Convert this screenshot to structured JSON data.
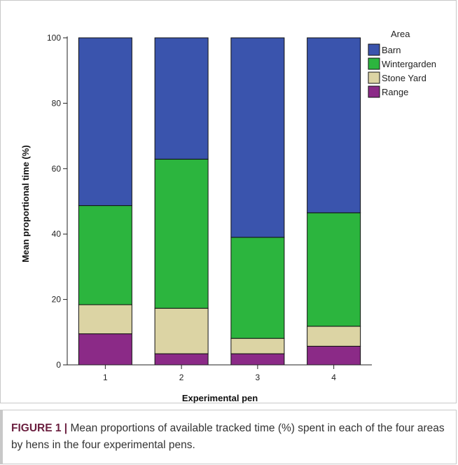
{
  "chart_data": {
    "type": "bar",
    "stacked": true,
    "categories": [
      "1",
      "2",
      "3",
      "4"
    ],
    "series": [
      {
        "name": "Range",
        "color": "#8b2a87",
        "values": [
          9.5,
          3.4,
          3.4,
          5.7
        ]
      },
      {
        "name": "Stone Yard",
        "color": "#dcd4a4",
        "values": [
          8.9,
          13.9,
          4.7,
          6.1
        ]
      },
      {
        "name": "Wintergarden",
        "color": "#2cb53e",
        "values": [
          30.3,
          45.6,
          30.9,
          34.7
        ]
      },
      {
        "name": "Barn",
        "color": "#3a54ad",
        "values": [
          51.3,
          37.1,
          61.0,
          53.5
        ]
      }
    ],
    "xlabel": "Experimental pen",
    "ylabel": "Mean proportional time (%)",
    "ylim": [
      0,
      100
    ],
    "yticks": [
      "0",
      "20",
      "40",
      "60",
      "80",
      "100"
    ],
    "grid": false,
    "legend": {
      "title": "Area",
      "placement": "top-right",
      "order": [
        "Barn",
        "Wintergarden",
        "Stone Yard",
        "Range"
      ]
    }
  },
  "caption": {
    "label": "FIGURE 1 |",
    "text": " Mean proportions of available tracked time (%) spent in each of the four areas by hens in the four experimental pens."
  }
}
